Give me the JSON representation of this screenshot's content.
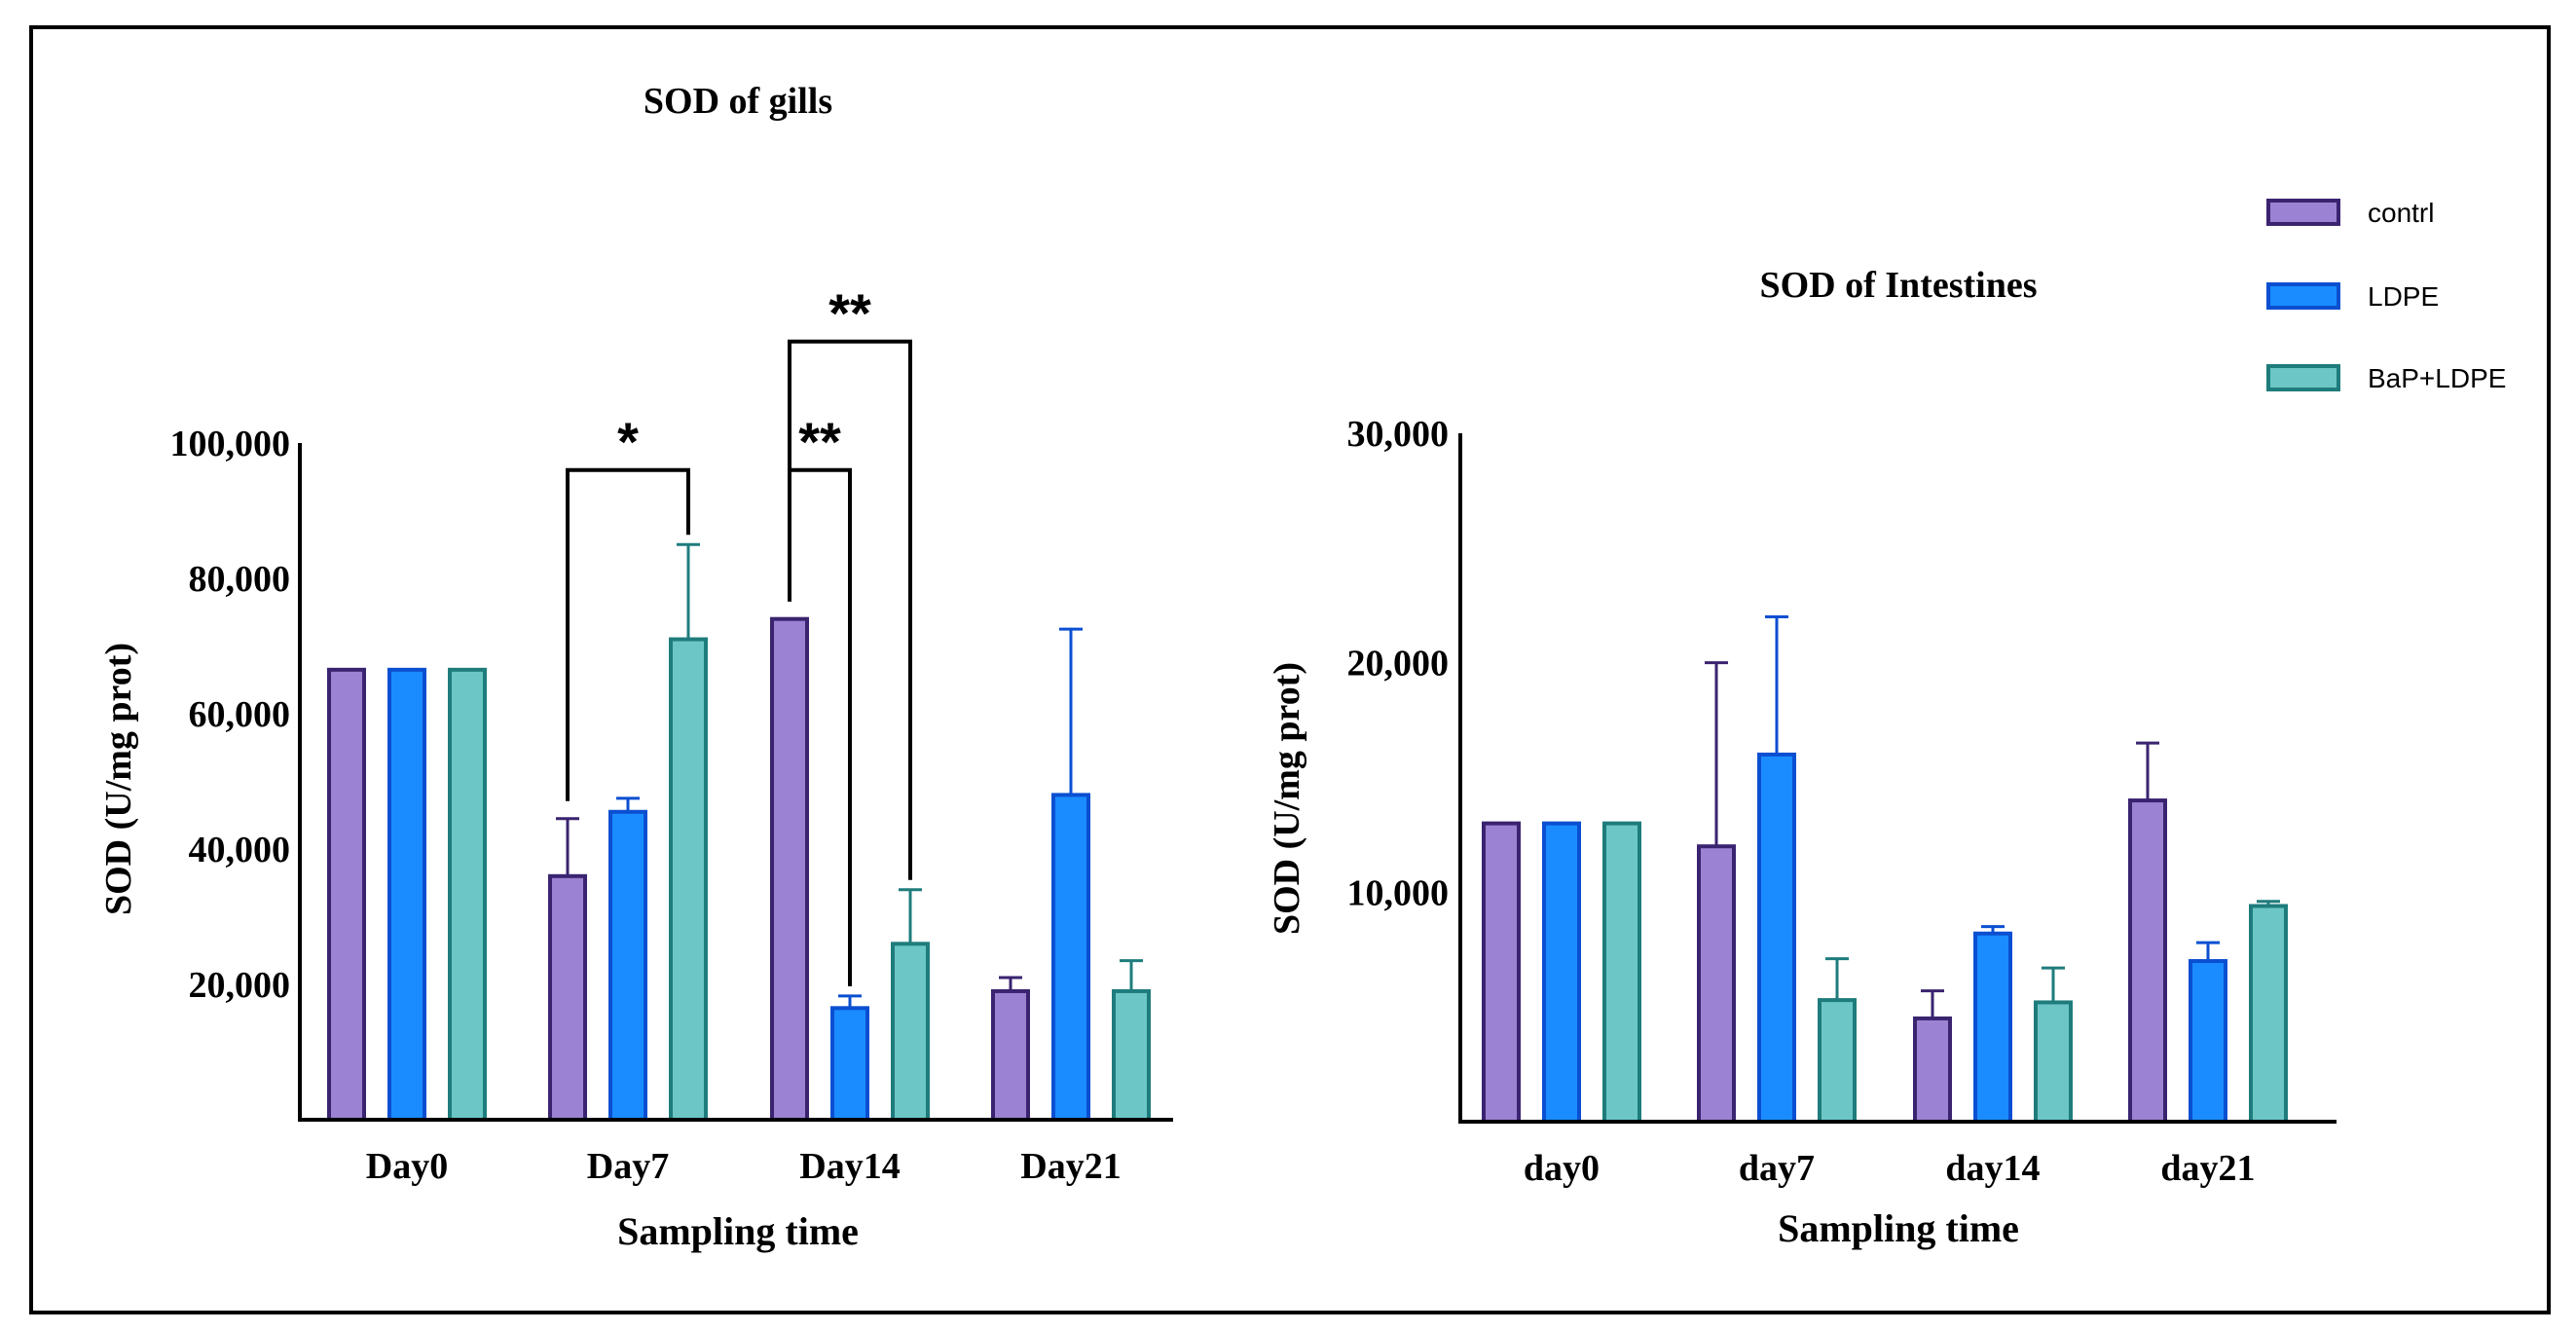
{
  "colors": {
    "contrl": {
      "fill": "#9b82d2",
      "stroke": "#3a2470"
    },
    "LDPE": {
      "fill": "#1a8cff",
      "stroke": "#0b4fd1"
    },
    "BaP+LDPE": {
      "fill": "#6cc6c6",
      "stroke": "#1f7c7c"
    }
  },
  "legend": {
    "entries": [
      "contrl",
      "LDPE",
      "BaP+LDPE"
    ]
  },
  "chart_data": [
    {
      "type": "bar",
      "title": "SOD of gills",
      "xlabel": "Sampling time",
      "ylabel": "SOD  (U/mg prot)",
      "ylim": [
        0,
        100000
      ],
      "yticks": [
        20000,
        40000,
        60000,
        80000,
        100000
      ],
      "ytick_labels": [
        "20,000",
        "40,000",
        "60,000",
        "80,000",
        "100,000"
      ],
      "categories": [
        "Day0",
        "Day7",
        "Day14",
        "Day21"
      ],
      "series": [
        {
          "name": "contrl",
          "values": [
            66500,
            36000,
            74000,
            19000
          ],
          "errors": [
            0,
            8500,
            0,
            2000
          ]
        },
        {
          "name": "LDPE",
          "values": [
            66500,
            45500,
            16500,
            48000
          ],
          "errors": [
            0,
            2000,
            1800,
            24500
          ]
        },
        {
          "name": "BaP+LDPE",
          "values": [
            66500,
            71000,
            26000,
            19000
          ],
          "errors": [
            0,
            14000,
            8000,
            4500
          ]
        }
      ],
      "significance": [
        {
          "category": "Day7",
          "from": "contrl",
          "to": "BaP+LDPE",
          "label": "*",
          "level": 96000
        },
        {
          "category": "Day14",
          "from": "contrl",
          "to": "LDPE",
          "label": "**",
          "level": 96000
        },
        {
          "category": "Day14",
          "from": "contrl",
          "to": "BaP+LDPE",
          "label": "**",
          "level": 115000
        }
      ]
    },
    {
      "type": "bar",
      "title": "SOD of Intestines",
      "xlabel": "Sampling time",
      "ylabel": "SOD  (U/mg prot)",
      "ylim": [
        0,
        30000
      ],
      "yticks": [
        10000,
        20000,
        30000
      ],
      "ytick_labels": [
        "10,000",
        "20,000",
        "30,000"
      ],
      "categories": [
        "day0",
        "day7",
        "day14",
        "day21"
      ],
      "series": [
        {
          "name": "contrl",
          "values": [
            13000,
            12000,
            4500,
            14000
          ],
          "errors": [
            0,
            8000,
            1200,
            2500
          ]
        },
        {
          "name": "LDPE",
          "values": [
            13000,
            16000,
            8200,
            7000
          ],
          "errors": [
            0,
            6000,
            300,
            800
          ]
        },
        {
          "name": "BaP+LDPE",
          "values": [
            13000,
            5300,
            5200,
            9400
          ],
          "errors": [
            0,
            1800,
            1500,
            200
          ]
        }
      ]
    }
  ]
}
